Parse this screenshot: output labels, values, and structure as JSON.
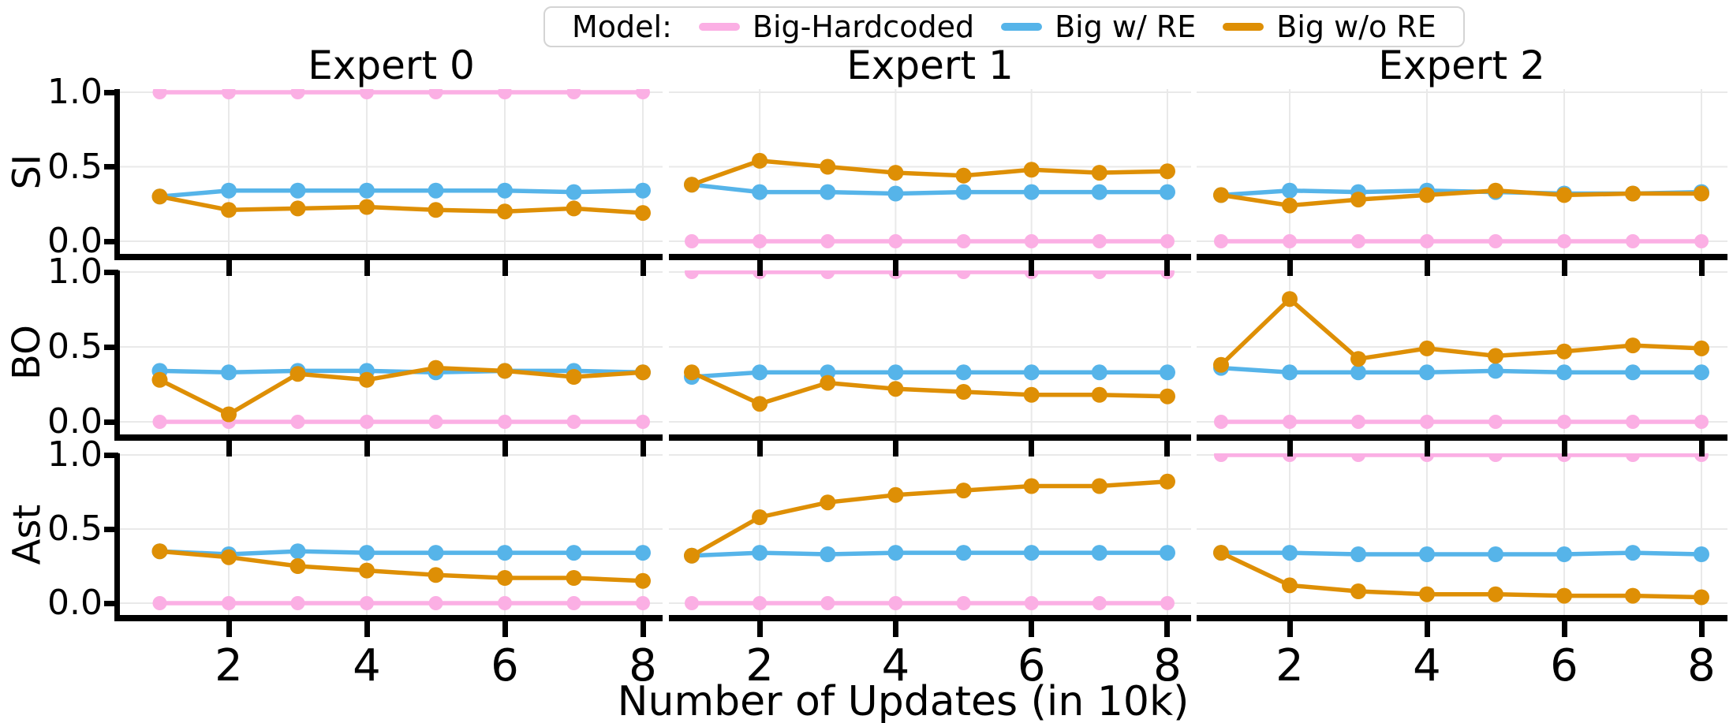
{
  "figure": {
    "legend": {
      "title": "Model:",
      "entries": [
        {
          "label": "Big-Hardcoded",
          "color": "#fbafe4"
        },
        {
          "label": "Big w/ RE",
          "color": "#56b4e9"
        },
        {
          "label": "Big w/o RE",
          "color": "#de8f05"
        }
      ]
    },
    "xlabel": "Number of Updates (in 10k)"
  },
  "chart_data": {
    "type": "line",
    "x": [
      1,
      2,
      3,
      4,
      5,
      6,
      7,
      8
    ],
    "x_tick_values": [
      2,
      4,
      6,
      8
    ],
    "x_tick_labels": [
      "2",
      "4",
      "6",
      "8"
    ],
    "y_tick_values": [
      1.0,
      0.5,
      0.0
    ],
    "y_tick_labels": [
      "1.0",
      "0.5",
      "0.0"
    ],
    "ylim": [
      0,
      1
    ],
    "grid": true,
    "legend_position": "top-center",
    "xlabel": "Number of Updates (in 10k)",
    "col_titles": [
      "Expert 0",
      "Expert 1",
      "Expert 2"
    ],
    "row_labels": [
      "SI",
      "BO",
      "Ast"
    ],
    "series_colors": {
      "Big-Hardcoded": "#fbafe4",
      "Big w/ RE": "#56b4e9",
      "Big w/o RE": "#de8f05"
    },
    "panels": [
      {
        "row": "SI",
        "col": "Expert 0",
        "series": [
          {
            "name": "Big-Hardcoded",
            "values": [
              1.0,
              1.0,
              1.0,
              1.0,
              1.0,
              1.0,
              1.0,
              1.0
            ]
          },
          {
            "name": "Big w/ RE",
            "values": [
              0.3,
              0.34,
              0.34,
              0.34,
              0.34,
              0.34,
              0.33,
              0.34
            ]
          },
          {
            "name": "Big w/o RE",
            "values": [
              0.3,
              0.21,
              0.22,
              0.23,
              0.21,
              0.2,
              0.22,
              0.19
            ]
          }
        ]
      },
      {
        "row": "SI",
        "col": "Expert 1",
        "series": [
          {
            "name": "Big-Hardcoded",
            "values": [
              0.0,
              0.0,
              0.0,
              0.0,
              0.0,
              0.0,
              0.0,
              0.0
            ]
          },
          {
            "name": "Big w/ RE",
            "values": [
              0.38,
              0.33,
              0.33,
              0.32,
              0.33,
              0.33,
              0.33,
              0.33
            ]
          },
          {
            "name": "Big w/o RE",
            "values": [
              0.38,
              0.54,
              0.5,
              0.46,
              0.44,
              0.48,
              0.46,
              0.47
            ]
          }
        ]
      },
      {
        "row": "SI",
        "col": "Expert 2",
        "series": [
          {
            "name": "Big-Hardcoded",
            "values": [
              0.0,
              0.0,
              0.0,
              0.0,
              0.0,
              0.0,
              0.0,
              0.0
            ]
          },
          {
            "name": "Big w/ RE",
            "values": [
              0.31,
              0.34,
              0.33,
              0.34,
              0.33,
              0.32,
              0.32,
              0.33
            ]
          },
          {
            "name": "Big w/o RE",
            "values": [
              0.31,
              0.24,
              0.28,
              0.31,
              0.34,
              0.31,
              0.32,
              0.32
            ]
          }
        ]
      },
      {
        "row": "BO",
        "col": "Expert 0",
        "series": [
          {
            "name": "Big-Hardcoded",
            "values": [
              0.0,
              0.0,
              0.0,
              0.0,
              0.0,
              0.0,
              0.0,
              0.0
            ]
          },
          {
            "name": "Big w/ RE",
            "values": [
              0.34,
              0.33,
              0.34,
              0.34,
              0.33,
              0.34,
              0.34,
              0.33
            ]
          },
          {
            "name": "Big w/o RE",
            "values": [
              0.28,
              0.05,
              0.32,
              0.28,
              0.36,
              0.34,
              0.3,
              0.33
            ]
          }
        ]
      },
      {
        "row": "BO",
        "col": "Expert 1",
        "series": [
          {
            "name": "Big-Hardcoded",
            "values": [
              1.0,
              1.0,
              1.0,
              1.0,
              1.0,
              1.0,
              1.0,
              1.0
            ]
          },
          {
            "name": "Big w/ RE",
            "values": [
              0.3,
              0.33,
              0.33,
              0.33,
              0.33,
              0.33,
              0.33,
              0.33
            ]
          },
          {
            "name": "Big w/o RE",
            "values": [
              0.33,
              0.12,
              0.26,
              0.22,
              0.2,
              0.18,
              0.18,
              0.17
            ]
          }
        ]
      },
      {
        "row": "BO",
        "col": "Expert 2",
        "series": [
          {
            "name": "Big-Hardcoded",
            "values": [
              0.0,
              0.0,
              0.0,
              0.0,
              0.0,
              0.0,
              0.0,
              0.0
            ]
          },
          {
            "name": "Big w/ RE",
            "values": [
              0.36,
              0.33,
              0.33,
              0.33,
              0.34,
              0.33,
              0.33,
              0.33
            ]
          },
          {
            "name": "Big w/o RE",
            "values": [
              0.38,
              0.82,
              0.42,
              0.49,
              0.44,
              0.47,
              0.51,
              0.49
            ]
          }
        ]
      },
      {
        "row": "Ast",
        "col": "Expert 0",
        "series": [
          {
            "name": "Big-Hardcoded",
            "values": [
              0.0,
              0.0,
              0.0,
              0.0,
              0.0,
              0.0,
              0.0,
              0.0
            ]
          },
          {
            "name": "Big w/ RE",
            "values": [
              0.35,
              0.33,
              0.35,
              0.34,
              0.34,
              0.34,
              0.34,
              0.34
            ]
          },
          {
            "name": "Big w/o RE",
            "values": [
              0.35,
              0.31,
              0.25,
              0.22,
              0.19,
              0.17,
              0.17,
              0.15
            ]
          }
        ]
      },
      {
        "row": "Ast",
        "col": "Expert 1",
        "series": [
          {
            "name": "Big-Hardcoded",
            "values": [
              0.0,
              0.0,
              0.0,
              0.0,
              0.0,
              0.0,
              0.0,
              0.0
            ]
          },
          {
            "name": "Big w/ RE",
            "values": [
              0.32,
              0.34,
              0.33,
              0.34,
              0.34,
              0.34,
              0.34,
              0.34
            ]
          },
          {
            "name": "Big w/o RE",
            "values": [
              0.32,
              0.58,
              0.68,
              0.73,
              0.76,
              0.79,
              0.79,
              0.82
            ]
          }
        ]
      },
      {
        "row": "Ast",
        "col": "Expert 2",
        "series": [
          {
            "name": "Big-Hardcoded",
            "values": [
              1.0,
              1.0,
              1.0,
              1.0,
              1.0,
              1.0,
              1.0,
              1.0
            ]
          },
          {
            "name": "Big w/ RE",
            "values": [
              0.34,
              0.34,
              0.33,
              0.33,
              0.33,
              0.33,
              0.34,
              0.33
            ]
          },
          {
            "name": "Big w/o RE",
            "values": [
              0.34,
              0.12,
              0.08,
              0.06,
              0.06,
              0.05,
              0.05,
              0.04
            ]
          }
        ]
      }
    ]
  }
}
